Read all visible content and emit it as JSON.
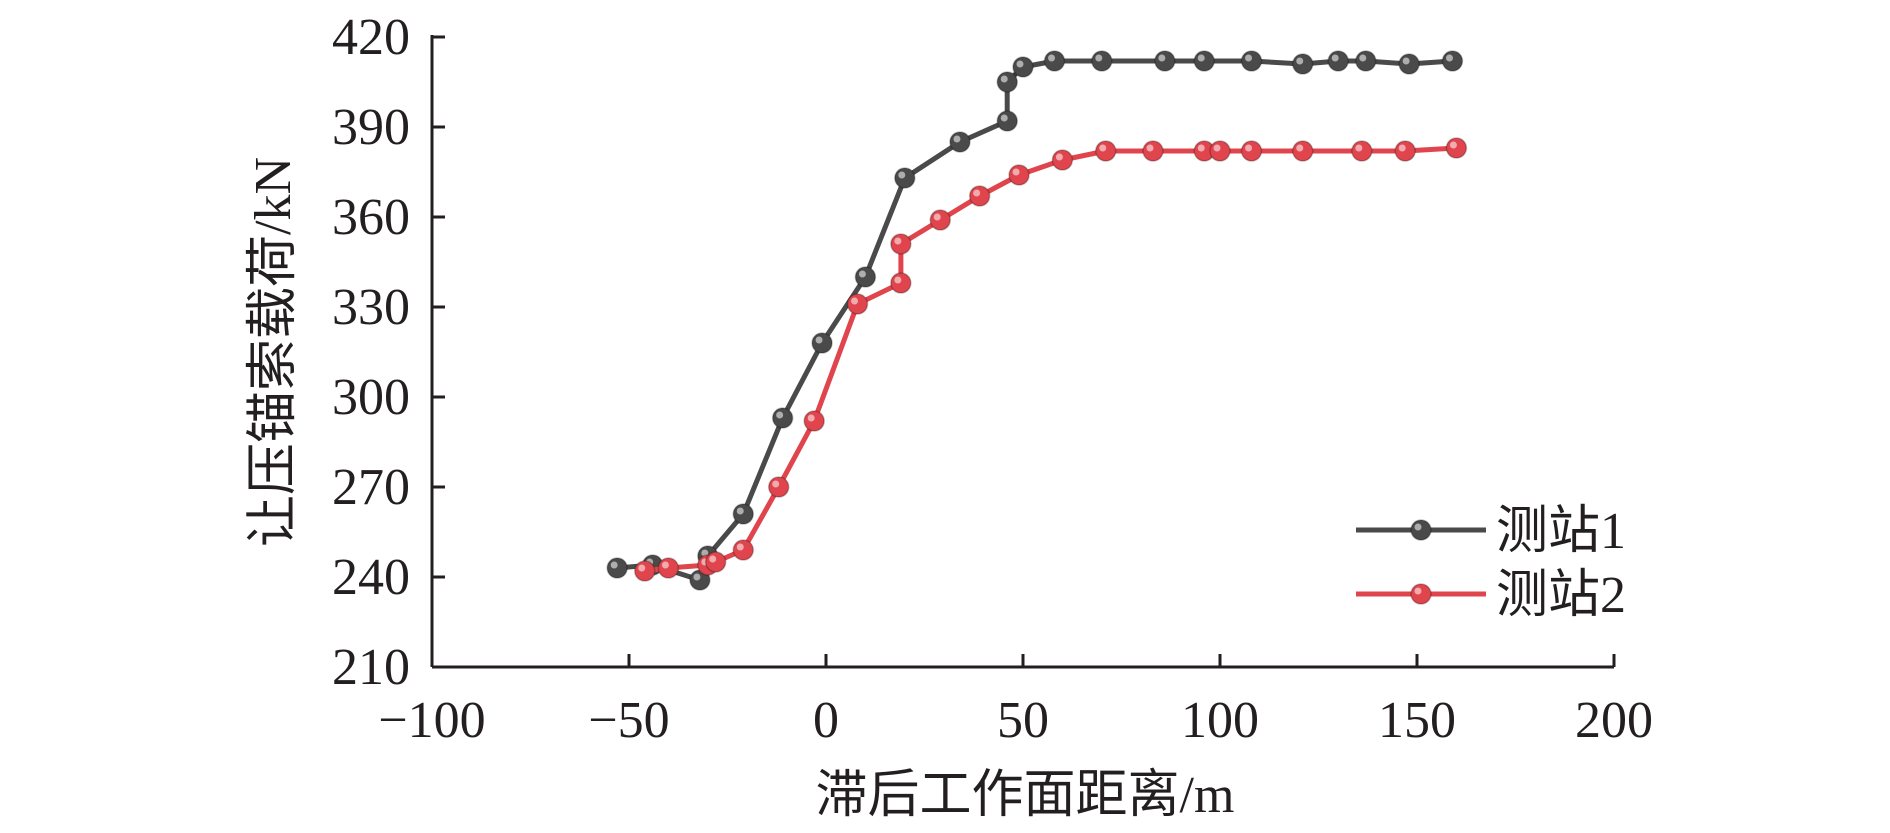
{
  "chart_data": {
    "type": "line",
    "title": "",
    "xlabel": "滞后工作面距离/m",
    "ylabel": "让压锚索载荷/kN",
    "xlim": [
      -100,
      200
    ],
    "ylim": [
      210,
      420
    ],
    "xticks": [
      -100,
      -50,
      0,
      50,
      100,
      150,
      200
    ],
    "xtick_labels": [
      "−100",
      "−50",
      "0",
      "50",
      "100",
      "150",
      "200"
    ],
    "yticks": [
      210,
      240,
      270,
      300,
      330,
      360,
      390,
      420
    ],
    "ytick_labels": [
      "210",
      "240",
      "270",
      "300",
      "330",
      "360",
      "390",
      "420"
    ],
    "grid": false,
    "legend_position": "bottom-right",
    "series": [
      {
        "name": "测站1",
        "color": "#4a4a4a",
        "x": [
          -53,
          -44,
          -32,
          -30,
          -21,
          -11,
          -1,
          10,
          20,
          34,
          46,
          46,
          50,
          58,
          70,
          86,
          96,
          108,
          121,
          130,
          137,
          148,
          159
        ],
        "y": [
          243,
          244,
          239,
          247,
          261,
          293,
          318,
          340,
          373,
          385,
          392,
          405,
          410,
          412,
          412,
          412,
          412,
          412,
          411,
          412,
          412,
          411,
          412
        ]
      },
      {
        "name": "测站2",
        "color": "#e0454d",
        "x": [
          -46,
          -40,
          -30,
          -28,
          -21,
          -12,
          -3,
          8,
          19,
          19,
          29,
          39,
          49,
          60,
          71,
          83,
          96,
          100,
          108,
          121,
          136,
          147,
          160
        ],
        "y": [
          242,
          243,
          244,
          245,
          249,
          270,
          292,
          331,
          338,
          351,
          359,
          367,
          374,
          379,
          382,
          382,
          382,
          382,
          382,
          382,
          382,
          382,
          383
        ]
      }
    ]
  }
}
